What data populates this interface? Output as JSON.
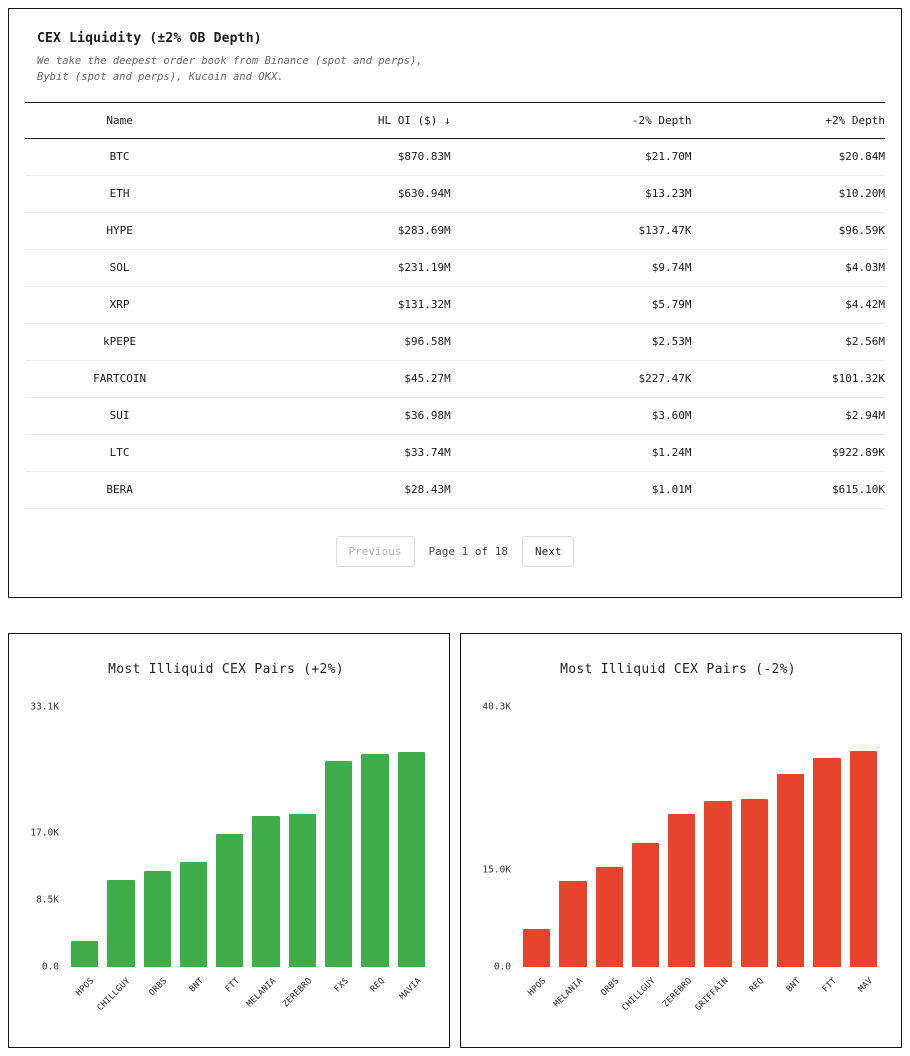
{
  "table_card": {
    "title": "CEX Liquidity (±2% OB Depth)",
    "subtitle": "We take the deepest order book from Binance (spot and perps), Bybit (spot and perps), Kucoin and OKX.",
    "columns": [
      "Name",
      "HL OI ($) ↓",
      "-2% Depth",
      "+2% Depth"
    ],
    "rows": [
      [
        "BTC",
        "$870.83M",
        "$21.70M",
        "$20.84M"
      ],
      [
        "ETH",
        "$630.94M",
        "$13.23M",
        "$10.20M"
      ],
      [
        "HYPE",
        "$283.69M",
        "$137.47K",
        "$96.59K"
      ],
      [
        "SOL",
        "$231.19M",
        "$9.74M",
        "$4.03M"
      ],
      [
        "XRP",
        "$131.32M",
        "$5.79M",
        "$4.42M"
      ],
      [
        "kPEPE",
        "$96.58M",
        "$2.53M",
        "$2.56M"
      ],
      [
        "FARTCOIN",
        "$45.27M",
        "$227.47K",
        "$101.32K"
      ],
      [
        "SUI",
        "$36.98M",
        "$3.60M",
        "$2.94M"
      ],
      [
        "LTC",
        "$33.74M",
        "$1.24M",
        "$922.89K"
      ],
      [
        "BERA",
        "$28.43M",
        "$1.01M",
        "$615.10K"
      ]
    ],
    "pagination": {
      "previous_label": "Previous",
      "page_label": "Page 1 of 18",
      "next_label": "Next"
    }
  },
  "chart_data": [
    {
      "type": "bar",
      "title": "Most Illiquid CEX Pairs (+2%)",
      "categories": [
        "HPOS",
        "CHILLGUY",
        "ORBS",
        "BNT",
        "FTT",
        "MELANIA",
        "ZEREBRO",
        "FXS",
        "REQ",
        "MAVIA"
      ],
      "values": [
        3300,
        11000,
        12200,
        13300,
        16900,
        19200,
        19400,
        26200,
        27100,
        27300
      ],
      "xlabel": "",
      "ylabel": "",
      "ylim": [
        0,
        33100
      ],
      "yticks": [
        {
          "label": "0.0",
          "value": 0
        },
        {
          "label": "8.5K",
          "value": 8500
        },
        {
          "label": "17.0K",
          "value": 17000
        },
        {
          "label": "33.1K",
          "value": 33100
        }
      ],
      "grid": false,
      "legend": "none",
      "bar_color": "#3fae4a"
    },
    {
      "type": "bar",
      "title": "Most Illiquid CEX Pairs (-2%)",
      "categories": [
        "HPOS",
        "MELANIA",
        "ORBS",
        "CHILLGUY",
        "ZEREBRO",
        "GRIFFAIN",
        "REQ",
        "BNT",
        "FTT",
        "MAV"
      ],
      "values": [
        5800,
        13300,
        15400,
        19200,
        23700,
        25700,
        25900,
        29900,
        32400,
        33400
      ],
      "xlabel": "",
      "ylabel": "",
      "ylim": [
        0,
        40300
      ],
      "yticks": [
        {
          "label": "0.0",
          "value": 0
        },
        {
          "label": "15.0K",
          "value": 15000
        },
        {
          "label": "40.3K",
          "value": 40300
        }
      ],
      "grid": false,
      "legend": "none",
      "bar_color": "#e8432c"
    }
  ]
}
